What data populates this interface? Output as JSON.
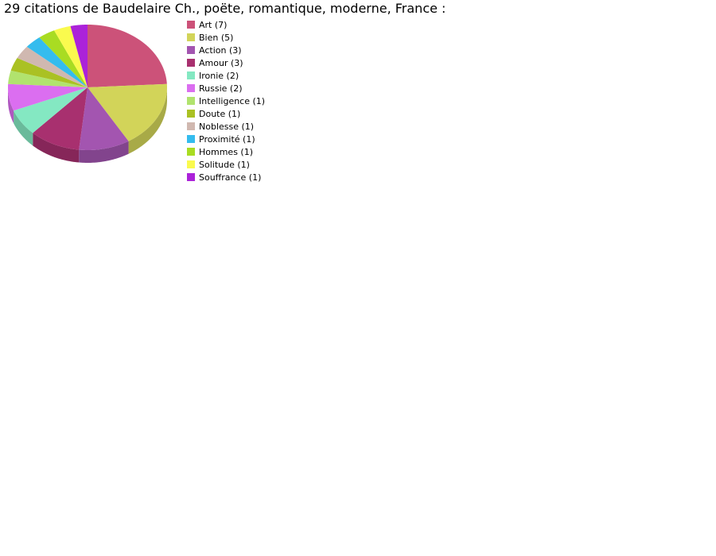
{
  "chart_data": {
    "type": "pie",
    "title": "29 citations de Baudelaire Ch., poëte, romantique, moderne, France :",
    "legend_position": "right",
    "style": "3d",
    "slices": [
      {
        "label": "Art (7)",
        "value": 7,
        "color": "#cc5279"
      },
      {
        "label": "Bien (5)",
        "value": 5,
        "color": "#d2d459"
      },
      {
        "label": "Action (3)",
        "value": 3,
        "color": "#a355b0"
      },
      {
        "label": "Amour (3)",
        "value": 3,
        "color": "#a8306f"
      },
      {
        "label": "Ironie (2)",
        "value": 2,
        "color": "#84e8c2"
      },
      {
        "label": "Russie (2)",
        "value": 2,
        "color": "#db6ef0"
      },
      {
        "label": "Intelligence (1)",
        "value": 1,
        "color": "#b1e36e"
      },
      {
        "label": "Doute (1)",
        "value": 1,
        "color": "#aac123"
      },
      {
        "label": "Noblesse (1)",
        "value": 1,
        "color": "#d0b8b0"
      },
      {
        "label": "Proximité (1)",
        "value": 1,
        "color": "#34bcee"
      },
      {
        "label": "Hommes (1)",
        "value": 1,
        "color": "#a9dc22"
      },
      {
        "label": "Solitude (1)",
        "value": 1,
        "color": "#fafa4e"
      },
      {
        "label": "Souffrance (1)",
        "value": 1,
        "color": "#ab22d9"
      }
    ]
  }
}
